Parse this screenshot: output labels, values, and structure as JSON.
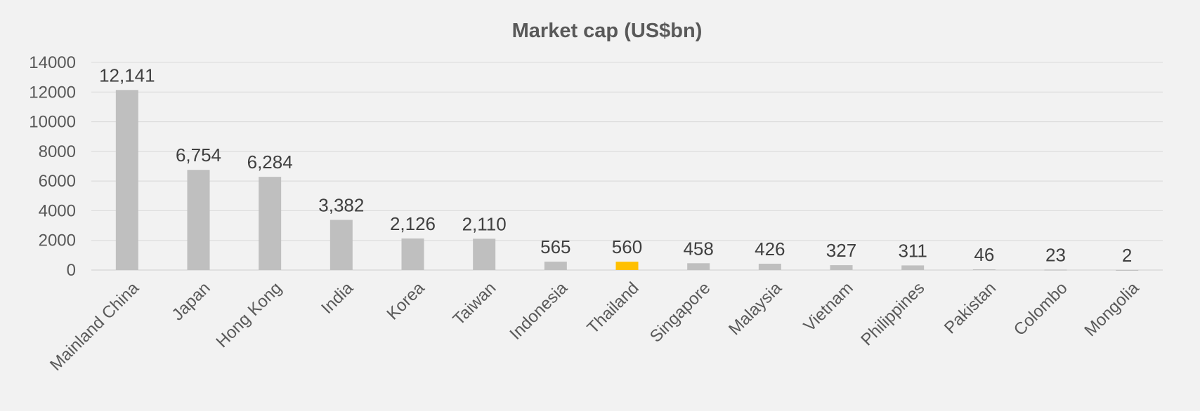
{
  "chart_data": {
    "type": "bar",
    "title": "Market cap (US$bn)",
    "xlabel": "",
    "ylabel": "",
    "categories": [
      "Mainland China",
      "Japan",
      "Hong Kong",
      "India",
      "Korea",
      "Taiwan",
      "Indonesia",
      "Thailand",
      "Singapore",
      "Malaysia",
      "Vietnam",
      "Philippines",
      "Pakistan",
      "Colombo",
      "Mongolia"
    ],
    "values": [
      12141,
      6754,
      6284,
      3382,
      2126,
      2110,
      565,
      560,
      458,
      426,
      327,
      311,
      46,
      23,
      2
    ],
    "data_labels": [
      "12,141",
      "6,754",
      "6,284",
      "3,382",
      "2,126",
      "2,110",
      "565",
      "560",
      "458",
      "426",
      "327",
      "311",
      "46",
      "23",
      "2"
    ],
    "yticks": [
      "0",
      "2000",
      "4000",
      "6000",
      "8000",
      "10000",
      "12000",
      "14000"
    ],
    "ylim": [
      0,
      14000
    ],
    "grid": true,
    "legend": "none",
    "colors": {
      "default_bar": "#bfbfbf",
      "highlight_bar": "#ffc000",
      "highlight_category": "Thailand",
      "background": "#f2f2f2",
      "gridline": "#d9d9d9"
    }
  }
}
